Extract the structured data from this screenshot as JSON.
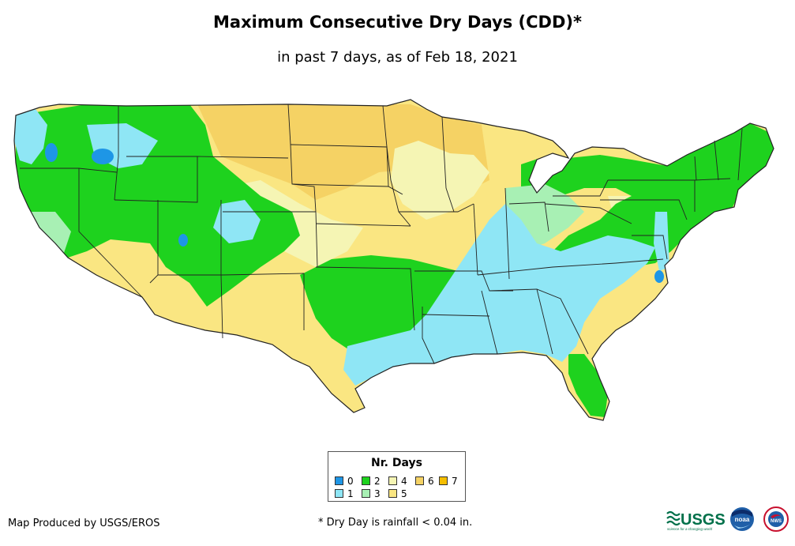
{
  "title": "Maximum Consecutive Dry Days (CDD)*",
  "subtitle": "in past 7 days, as of Feb 18, 2021",
  "legend": {
    "title": "Nr. Days",
    "items": [
      {
        "label": "0",
        "color": "#1e96e6"
      },
      {
        "label": "1",
        "color": "#8fe6f5"
      },
      {
        "label": "2",
        "color": "#1ed21e"
      },
      {
        "label": "3",
        "color": "#a8f0b4"
      },
      {
        "label": "4",
        "color": "#f5f5b4"
      },
      {
        "label": "5",
        "color": "#fae682"
      },
      {
        "label": "6",
        "color": "#f5d264"
      },
      {
        "label": "7",
        "color": "#f5be00"
      }
    ]
  },
  "footer": {
    "credit": "Map Produced by USGS/EROS",
    "footnote": "* Dry Day is rainfall < 0.04 in.",
    "usgs_logo_text": "USGS",
    "usgs_tagline": "science for a changing world",
    "noaa_logo_text": "noaa",
    "nws_logo_text": "NWS"
  }
}
